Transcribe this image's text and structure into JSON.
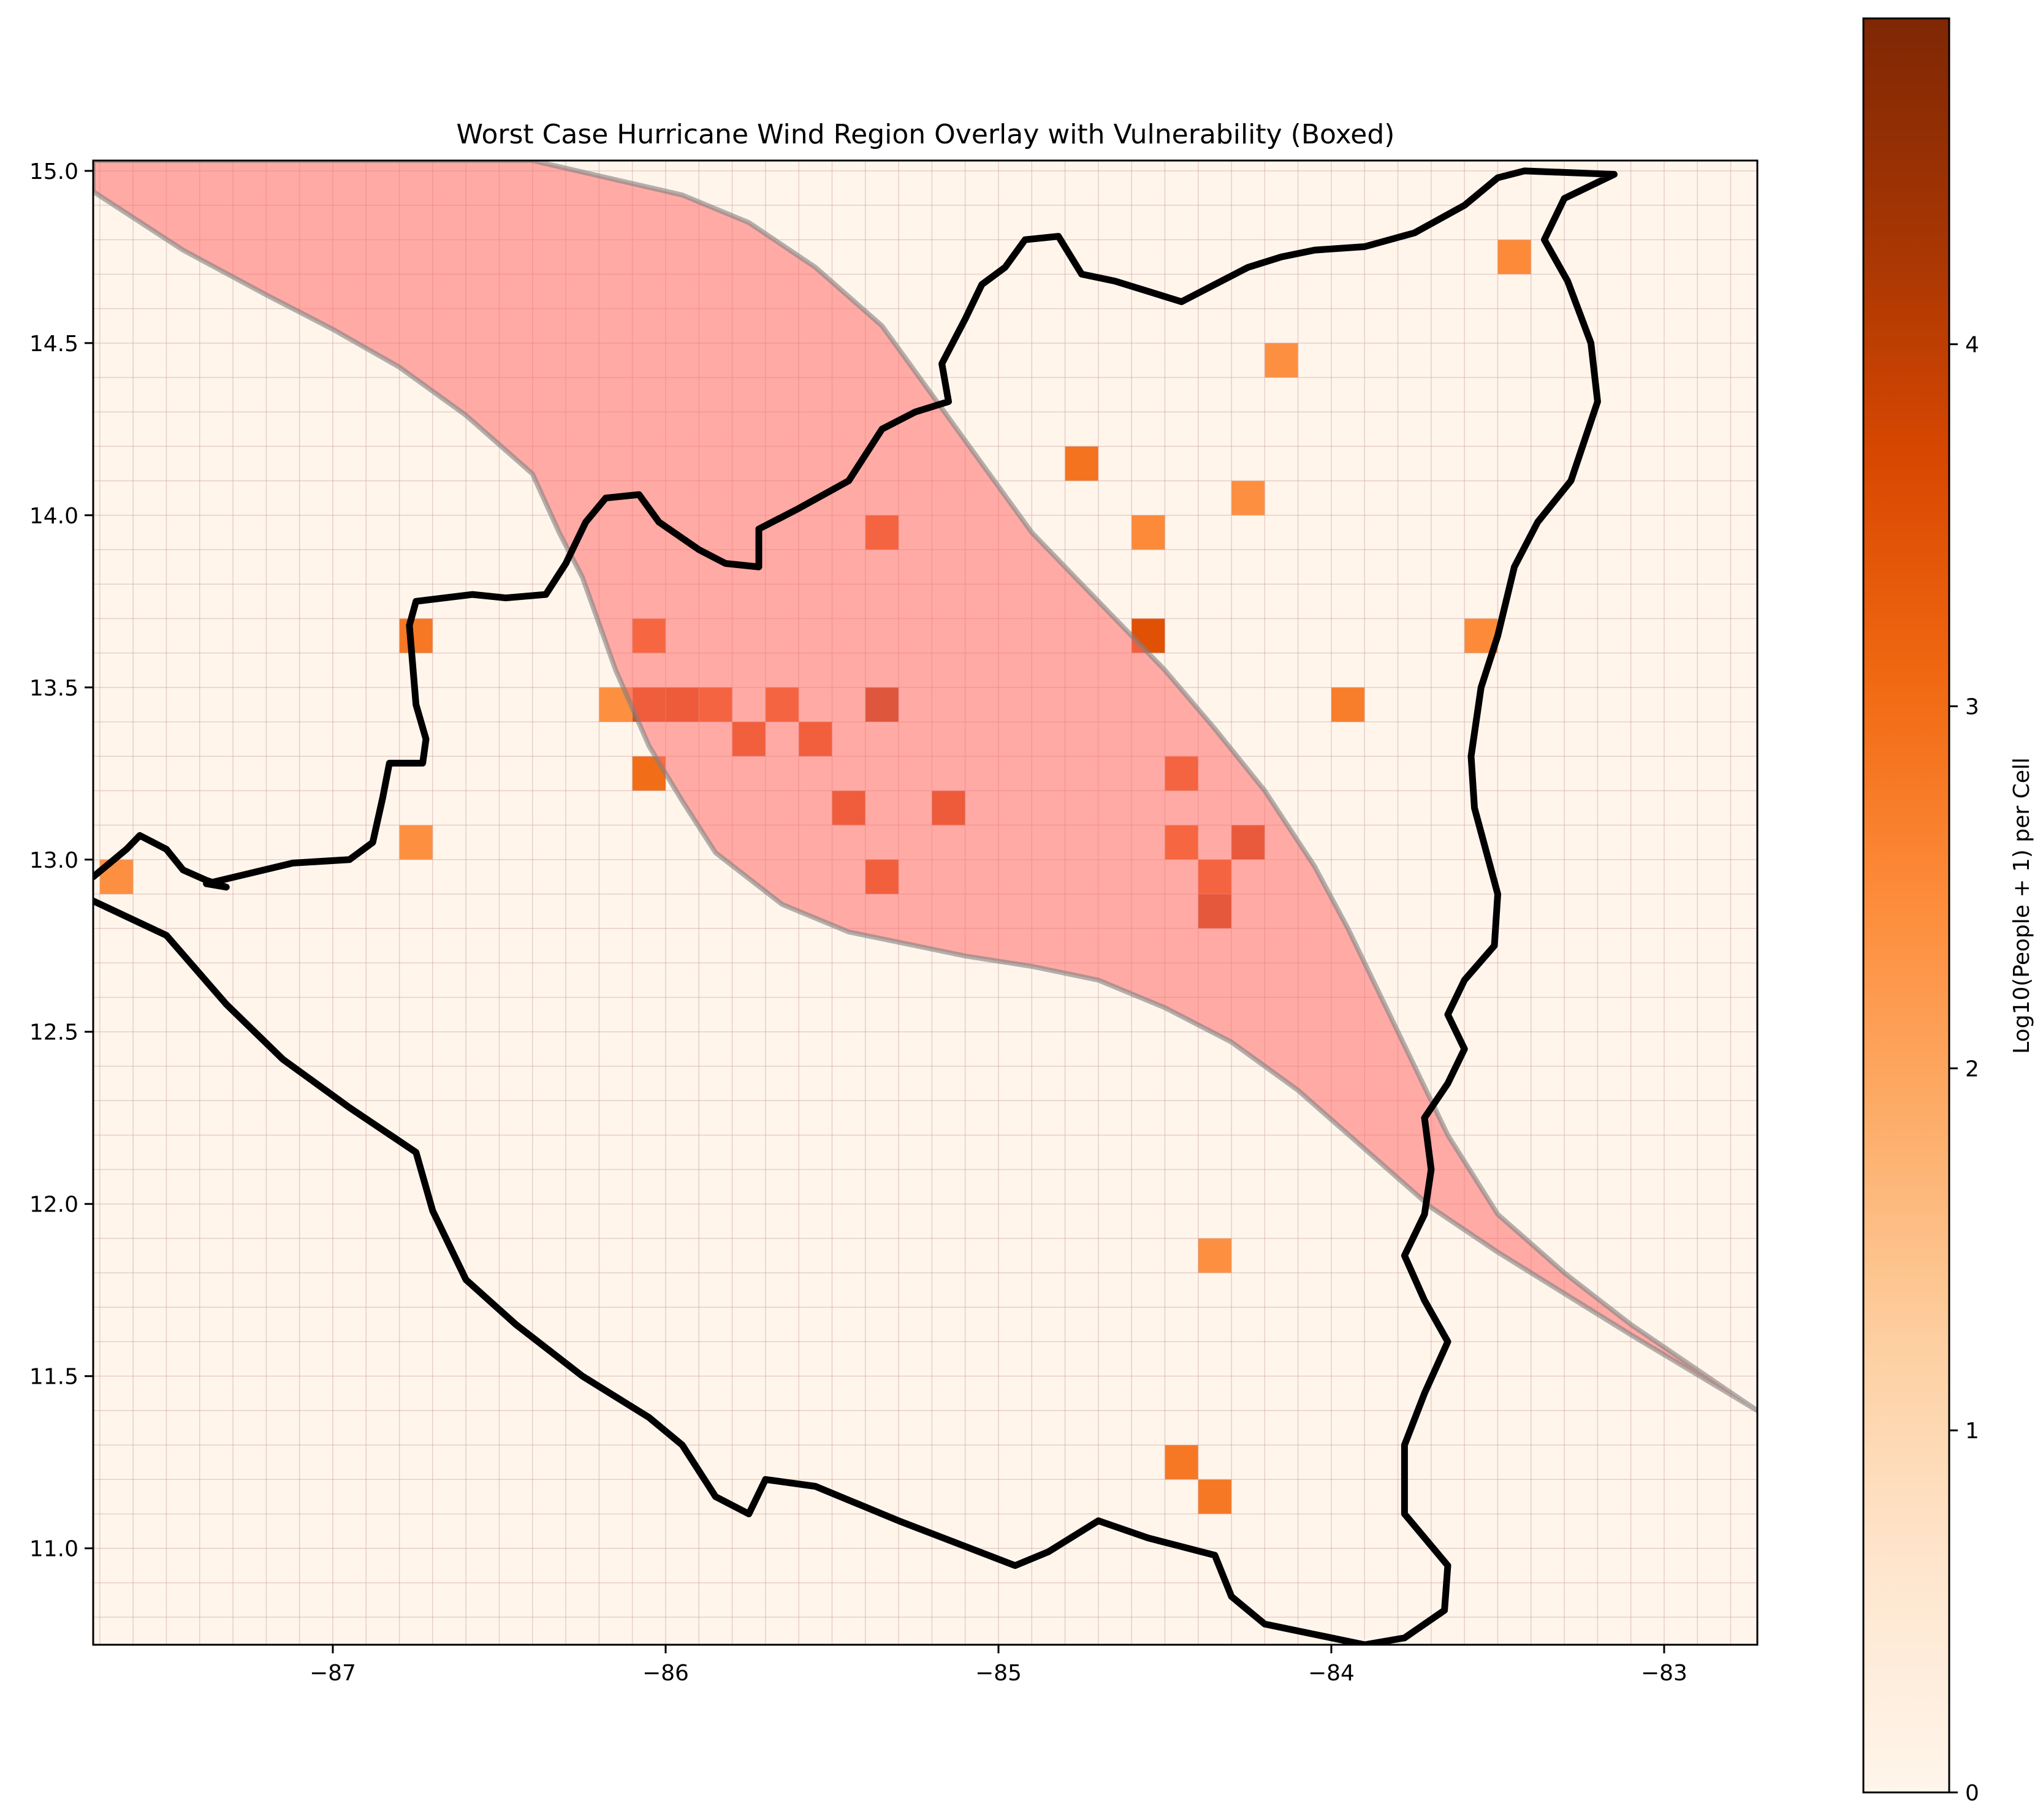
{
  "chart_data": {
    "type": "heatmap",
    "title": "Worst Case Hurricane Wind Region Overlay with Vulnerability (Boxed)",
    "xlabel": "",
    "ylabel": "",
    "xlim": [
      -87.72,
      -82.72
    ],
    "ylim": [
      10.72,
      15.03
    ],
    "x_ticks": [
      -87,
      -86,
      -85,
      -84,
      -83
    ],
    "x_tick_labels": [
      "−87",
      "−86",
      "−85",
      "−84",
      "−83"
    ],
    "y_ticks": [
      11.0,
      11.5,
      12.0,
      12.5,
      13.0,
      13.5,
      14.0,
      14.5,
      15.0
    ],
    "y_tick_labels": [
      "11.0",
      "11.5",
      "12.0",
      "12.5",
      "13.0",
      "13.5",
      "14.0",
      "14.5",
      "15.0"
    ],
    "grid_cell_size": 0.1,
    "grid": true,
    "colormap": "Oranges",
    "colorbar": {
      "label": "Log10(People + 1) per Cell",
      "range": [
        0,
        4.9
      ],
      "ticks": [
        0,
        1,
        2,
        3,
        4
      ],
      "tick_labels": [
        "0",
        "1",
        "2",
        "3",
        "4"
      ]
    },
    "cells": [
      {
        "lon": -87.65,
        "lat": 12.95,
        "value": 2.4
      },
      {
        "lon": -86.75,
        "lat": 13.65,
        "value": 2.8
      },
      {
        "lon": -86.75,
        "lat": 13.05,
        "value": 2.4
      },
      {
        "lon": -86.15,
        "lat": 13.45,
        "value": 2.4
      },
      {
        "lon": -86.05,
        "lat": 13.65,
        "value": 3.2
      },
      {
        "lon": -86.05,
        "lat": 13.45,
        "value": 3.6
      },
      {
        "lon": -86.05,
        "lat": 13.25,
        "value": 3.0
      },
      {
        "lon": -85.95,
        "lat": 13.45,
        "value": 3.7
      },
      {
        "lon": -85.85,
        "lat": 13.45,
        "value": 3.3
      },
      {
        "lon": -85.75,
        "lat": 13.35,
        "value": 3.5
      },
      {
        "lon": -85.65,
        "lat": 13.45,
        "value": 3.3
      },
      {
        "lon": -85.55,
        "lat": 13.35,
        "value": 3.5
      },
      {
        "lon": -85.45,
        "lat": 13.15,
        "value": 3.6
      },
      {
        "lon": -85.35,
        "lat": 13.95,
        "value": 3.3
      },
      {
        "lon": -85.35,
        "lat": 13.45,
        "value": 4.1
      },
      {
        "lon": -85.35,
        "lat": 12.95,
        "value": 3.5
      },
      {
        "lon": -85.15,
        "lat": 13.15,
        "value": 3.7
      },
      {
        "lon": -84.75,
        "lat": 14.15,
        "value": 2.9
      },
      {
        "lon": -84.55,
        "lat": 13.95,
        "value": 2.5
      },
      {
        "lon": -84.55,
        "lat": 13.65,
        "value": 3.5
      },
      {
        "lon": -84.45,
        "lat": 13.25,
        "value": 3.3
      },
      {
        "lon": -84.45,
        "lat": 13.05,
        "value": 3.2
      },
      {
        "lon": -84.45,
        "lat": 11.25,
        "value": 2.8
      },
      {
        "lon": -84.35,
        "lat": 12.95,
        "value": 3.3
      },
      {
        "lon": -84.35,
        "lat": 12.85,
        "value": 3.9
      },
      {
        "lon": -84.35,
        "lat": 11.85,
        "value": 2.4
      },
      {
        "lon": -84.35,
        "lat": 11.15,
        "value": 2.8
      },
      {
        "lon": -84.25,
        "lat": 14.05,
        "value": 2.4
      },
      {
        "lon": -84.25,
        "lat": 13.05,
        "value": 3.8
      },
      {
        "lon": -84.15,
        "lat": 14.45,
        "value": 2.4
      },
      {
        "lon": -83.95,
        "lat": 13.45,
        "value": 2.7
      },
      {
        "lon": -83.55,
        "lat": 13.65,
        "value": 2.5
      },
      {
        "lon": -83.45,
        "lat": 14.75,
        "value": 2.5
      }
    ],
    "wind_region": {
      "color": "#ff6b6b",
      "upper_edge": [
        [
          -87.72,
          15.03
        ],
        [
          -86.4,
          15.03
        ],
        [
          -85.95,
          14.93
        ],
        [
          -85.75,
          14.85
        ],
        [
          -85.55,
          14.72
        ],
        [
          -85.35,
          14.55
        ],
        [
          -85.2,
          14.35
        ],
        [
          -85.05,
          14.15
        ],
        [
          -84.9,
          13.95
        ],
        [
          -84.7,
          13.75
        ],
        [
          -84.5,
          13.55
        ],
        [
          -84.35,
          13.38
        ],
        [
          -84.2,
          13.2
        ],
        [
          -84.05,
          12.98
        ],
        [
          -83.95,
          12.8
        ],
        [
          -83.85,
          12.6
        ],
        [
          -83.75,
          12.4
        ],
        [
          -83.65,
          12.2
        ],
        [
          -83.5,
          11.97
        ],
        [
          -83.3,
          11.8
        ],
        [
          -83.1,
          11.65
        ],
        [
          -82.72,
          11.4
        ]
      ],
      "lower_edge": [
        [
          -82.72,
          11.4
        ],
        [
          -83.1,
          11.62
        ],
        [
          -83.3,
          11.74
        ],
        [
          -83.5,
          11.86
        ],
        [
          -83.7,
          11.99
        ],
        [
          -83.9,
          12.16
        ],
        [
          -84.1,
          12.33
        ],
        [
          -84.3,
          12.47
        ],
        [
          -84.5,
          12.57
        ],
        [
          -84.7,
          12.65
        ],
        [
          -84.9,
          12.69
        ],
        [
          -85.1,
          12.72
        ],
        [
          -85.3,
          12.76
        ],
        [
          -85.45,
          12.79
        ],
        [
          -85.65,
          12.87
        ],
        [
          -85.85,
          13.02
        ],
        [
          -85.95,
          13.17
        ],
        [
          -86.05,
          13.33
        ],
        [
          -86.15,
          13.55
        ],
        [
          -86.25,
          13.82
        ],
        [
          -86.32,
          13.95
        ],
        [
          -86.4,
          14.12
        ],
        [
          -86.6,
          14.29
        ],
        [
          -86.8,
          14.43
        ],
        [
          -87.0,
          14.54
        ],
        [
          -87.2,
          14.64
        ],
        [
          -87.45,
          14.77
        ],
        [
          -87.72,
          14.94
        ]
      ]
    },
    "country_outline": [
      [
        -87.72,
        12.95
      ],
      [
        -87.62,
        13.03
      ],
      [
        -87.58,
        13.07
      ],
      [
        -87.5,
        13.03
      ],
      [
        -87.45,
        12.97
      ],
      [
        -87.38,
        12.94
      ],
      [
        -87.32,
        12.92
      ],
      [
        -87.38,
        12.93
      ],
      [
        -87.12,
        12.99
      ],
      [
        -86.95,
        13.0
      ],
      [
        -86.88,
        13.05
      ],
      [
        -86.85,
        13.18
      ],
      [
        -86.83,
        13.28
      ],
      [
        -86.73,
        13.28
      ],
      [
        -86.72,
        13.35
      ],
      [
        -86.75,
        13.45
      ],
      [
        -86.77,
        13.68
      ],
      [
        -86.75,
        13.75
      ],
      [
        -86.58,
        13.77
      ],
      [
        -86.48,
        13.76
      ],
      [
        -86.36,
        13.77
      ],
      [
        -86.3,
        13.86
      ],
      [
        -86.24,
        13.98
      ],
      [
        -86.18,
        14.05
      ],
      [
        -86.08,
        14.06
      ],
      [
        -86.02,
        13.98
      ],
      [
        -85.9,
        13.9
      ],
      [
        -85.82,
        13.86
      ],
      [
        -85.72,
        13.85
      ],
      [
        -85.72,
        13.96
      ],
      [
        -85.6,
        14.02
      ],
      [
        -85.45,
        14.1
      ],
      [
        -85.35,
        14.25
      ],
      [
        -85.25,
        14.3
      ],
      [
        -85.15,
        14.33
      ],
      [
        -85.17,
        14.44
      ],
      [
        -85.1,
        14.57
      ],
      [
        -85.05,
        14.67
      ],
      [
        -84.98,
        14.72
      ],
      [
        -84.92,
        14.8
      ],
      [
        -84.82,
        14.81
      ],
      [
        -84.75,
        14.7
      ],
      [
        -84.65,
        14.68
      ],
      [
        -84.55,
        14.65
      ],
      [
        -84.45,
        14.62
      ],
      [
        -84.35,
        14.67
      ],
      [
        -84.25,
        14.72
      ],
      [
        -84.15,
        14.75
      ],
      [
        -84.05,
        14.77
      ],
      [
        -83.9,
        14.78
      ],
      [
        -83.75,
        14.82
      ],
      [
        -83.6,
        14.9
      ],
      [
        -83.5,
        14.98
      ],
      [
        -83.42,
        15.0
      ],
      [
        -83.15,
        14.99
      ],
      [
        -83.3,
        14.92
      ],
      [
        -83.36,
        14.8
      ],
      [
        -83.29,
        14.68
      ],
      [
        -83.22,
        14.5
      ],
      [
        -83.2,
        14.33
      ],
      [
        -83.28,
        14.1
      ],
      [
        -83.38,
        13.98
      ],
      [
        -83.45,
        13.85
      ],
      [
        -83.5,
        13.65
      ],
      [
        -83.55,
        13.5
      ],
      [
        -83.58,
        13.3
      ],
      [
        -83.57,
        13.15
      ],
      [
        -83.5,
        12.9
      ],
      [
        -83.51,
        12.75
      ],
      [
        -83.6,
        12.65
      ],
      [
        -83.65,
        12.55
      ],
      [
        -83.6,
        12.45
      ],
      [
        -83.65,
        12.35
      ],
      [
        -83.72,
        12.25
      ],
      [
        -83.7,
        12.1
      ],
      [
        -83.72,
        11.97
      ],
      [
        -83.78,
        11.85
      ],
      [
        -83.72,
        11.72
      ],
      [
        -83.65,
        11.6
      ],
      [
        -83.72,
        11.45
      ],
      [
        -83.78,
        11.3
      ],
      [
        -83.78,
        11.1
      ],
      [
        -83.65,
        10.95
      ],
      [
        -83.66,
        10.82
      ],
      [
        -83.78,
        10.74
      ],
      [
        -83.9,
        10.72
      ],
      [
        -84.05,
        10.75
      ],
      [
        -84.2,
        10.78
      ],
      [
        -84.3,
        10.86
      ],
      [
        -84.35,
        10.98
      ],
      [
        -84.55,
        11.03
      ],
      [
        -84.7,
        11.08
      ],
      [
        -84.85,
        10.99
      ],
      [
        -84.95,
        10.95
      ],
      [
        -85.3,
        11.08
      ],
      [
        -85.55,
        11.18
      ],
      [
        -85.7,
        11.2
      ],
      [
        -85.75,
        11.1
      ],
      [
        -85.85,
        11.15
      ],
      [
        -85.95,
        11.3
      ],
      [
        -86.05,
        11.38
      ],
      [
        -86.25,
        11.5
      ],
      [
        -86.45,
        11.65
      ],
      [
        -86.6,
        11.78
      ],
      [
        -86.7,
        11.98
      ],
      [
        -86.75,
        12.15
      ],
      [
        -86.95,
        12.28
      ],
      [
        -87.15,
        12.42
      ],
      [
        -87.32,
        12.58
      ],
      [
        -87.5,
        12.78
      ],
      [
        -87.72,
        12.88
      ]
    ]
  }
}
